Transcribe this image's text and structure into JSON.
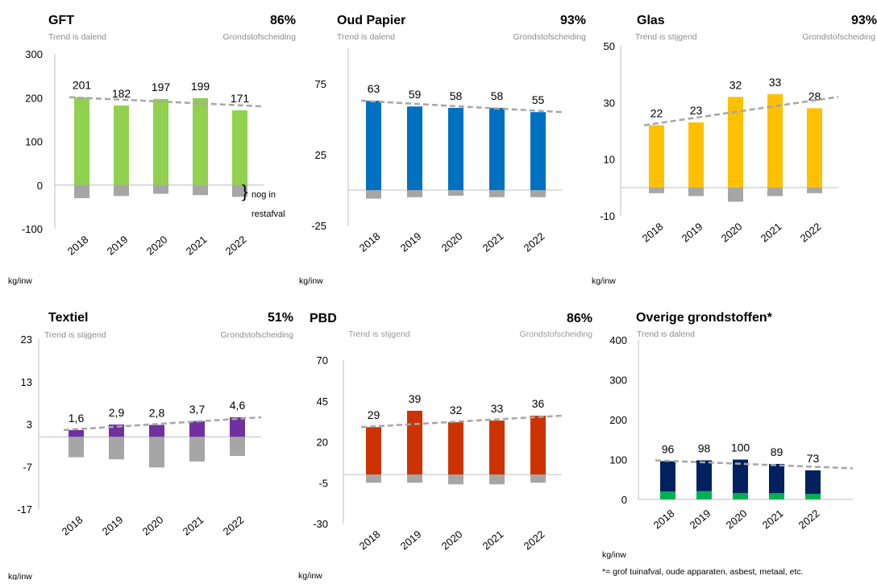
{
  "unit_label": "kg/inw",
  "grondstof_label": "Grondstofscheiding",
  "footnote": "*= grof tuinafval, oude apparaten, asbest, metaal, etc.",
  "colors": {
    "GFT": "#92d050",
    "Oud Papier": "#0070c0",
    "Glas": "#ffc000",
    "Textiel": "#7030a0",
    "PBD": "#cc3300",
    "Overige grondstoffen*": "#002060",
    "overige_green": "#00b050",
    "restafval": "#a6a6a6",
    "trend": "#a6a6a6"
  },
  "chart_data": [
    {
      "type": "bar",
      "title": "GFT",
      "percentage": "86%",
      "trend_text": "Trend is dalend",
      "categories": [
        "2018",
        "2019",
        "2020",
        "2021",
        "2022"
      ],
      "values": [
        201,
        182,
        197,
        199,
        171
      ],
      "data_labels": [
        "201",
        "182",
        "197",
        "199",
        "171"
      ],
      "negative_values": [
        -30,
        -25,
        -20,
        -23,
        -27
      ],
      "yticks": [
        300,
        200,
        100,
        0,
        -100
      ],
      "ylim": [
        -100,
        300
      ],
      "trend": [
        201,
        180
      ],
      "annotation": [
        "nog in",
        "restafval"
      ]
    },
    {
      "type": "bar",
      "title": "Oud Papier",
      "percentage": "93%",
      "trend_text": "Trend is dalend",
      "categories": [
        "2018",
        "2019",
        "2020",
        "2021",
        "2022"
      ],
      "values": [
        63,
        59,
        58,
        58,
        55
      ],
      "data_labels": [
        "63",
        "59",
        "58",
        "58",
        "55"
      ],
      "negative_values": [
        -6,
        -5,
        -4,
        -5,
        -5
      ],
      "yticks": [
        75,
        25,
        -25
      ],
      "ylim": [
        -25,
        100
      ],
      "trend": [
        63,
        55
      ]
    },
    {
      "type": "bar",
      "title": "Glas",
      "percentage": "93%",
      "trend_text": "Trend is stijgend",
      "categories": [
        "2018",
        "2019",
        "2020",
        "2021",
        "2022"
      ],
      "values": [
        22,
        23,
        32,
        33,
        28
      ],
      "data_labels": [
        "22",
        "23",
        "32",
        "33",
        "28"
      ],
      "negative_values": [
        -2,
        -3,
        -5,
        -3,
        -2
      ],
      "yticks": [
        50,
        30,
        10,
        -10
      ],
      "ylim": [
        -10,
        50
      ],
      "trend": [
        22,
        32
      ]
    },
    {
      "type": "bar",
      "title": "Textiel",
      "percentage": "51%",
      "trend_text": "Trend is stijgend",
      "categories": [
        "2018",
        "2019",
        "2020",
        "2021",
        "2022"
      ],
      "values": [
        1.6,
        2.9,
        2.8,
        3.7,
        4.6
      ],
      "data_labels": [
        "1,6",
        "2,9",
        "2,8",
        "3,7",
        "4,6"
      ],
      "negative_values": [
        -4.8,
        -5.3,
        -7.2,
        -5.8,
        -4.5
      ],
      "yticks": [
        23,
        13,
        3,
        -7,
        -17
      ],
      "ylim": [
        -17,
        23
      ],
      "trend": [
        1.6,
        4.6
      ]
    },
    {
      "type": "bar",
      "title": "PBD",
      "percentage": "86%",
      "trend_text": "Trend is stijgend",
      "categories": [
        "2018",
        "2019",
        "2020",
        "2021",
        "2022"
      ],
      "values": [
        29,
        39,
        32,
        33,
        36
      ],
      "data_labels": [
        "29",
        "39",
        "32",
        "33",
        "36"
      ],
      "negative_values": [
        -5,
        -5,
        -6,
        -6,
        -5
      ],
      "yticks": [
        70,
        45,
        20,
        -5,
        -30
      ],
      "ylim": [
        -30,
        70
      ],
      "trend": [
        29,
        36
      ]
    },
    {
      "type": "bar",
      "title": "Overige grondstoffen*",
      "percentage": "",
      "trend_text": "Trend is dalend",
      "categories": [
        "2018",
        "2019",
        "2020",
        "2021",
        "2022"
      ],
      "values": [
        96,
        98,
        100,
        89,
        73
      ],
      "data_labels": [
        "96",
        "98",
        "100",
        "89",
        "73"
      ],
      "green_values": [
        20,
        21,
        16,
        16,
        14
      ],
      "negative_values": [],
      "yticks": [
        400,
        300,
        200,
        100,
        0
      ],
      "ylim": [
        0,
        400
      ],
      "trend": [
        98,
        78
      ]
    }
  ]
}
